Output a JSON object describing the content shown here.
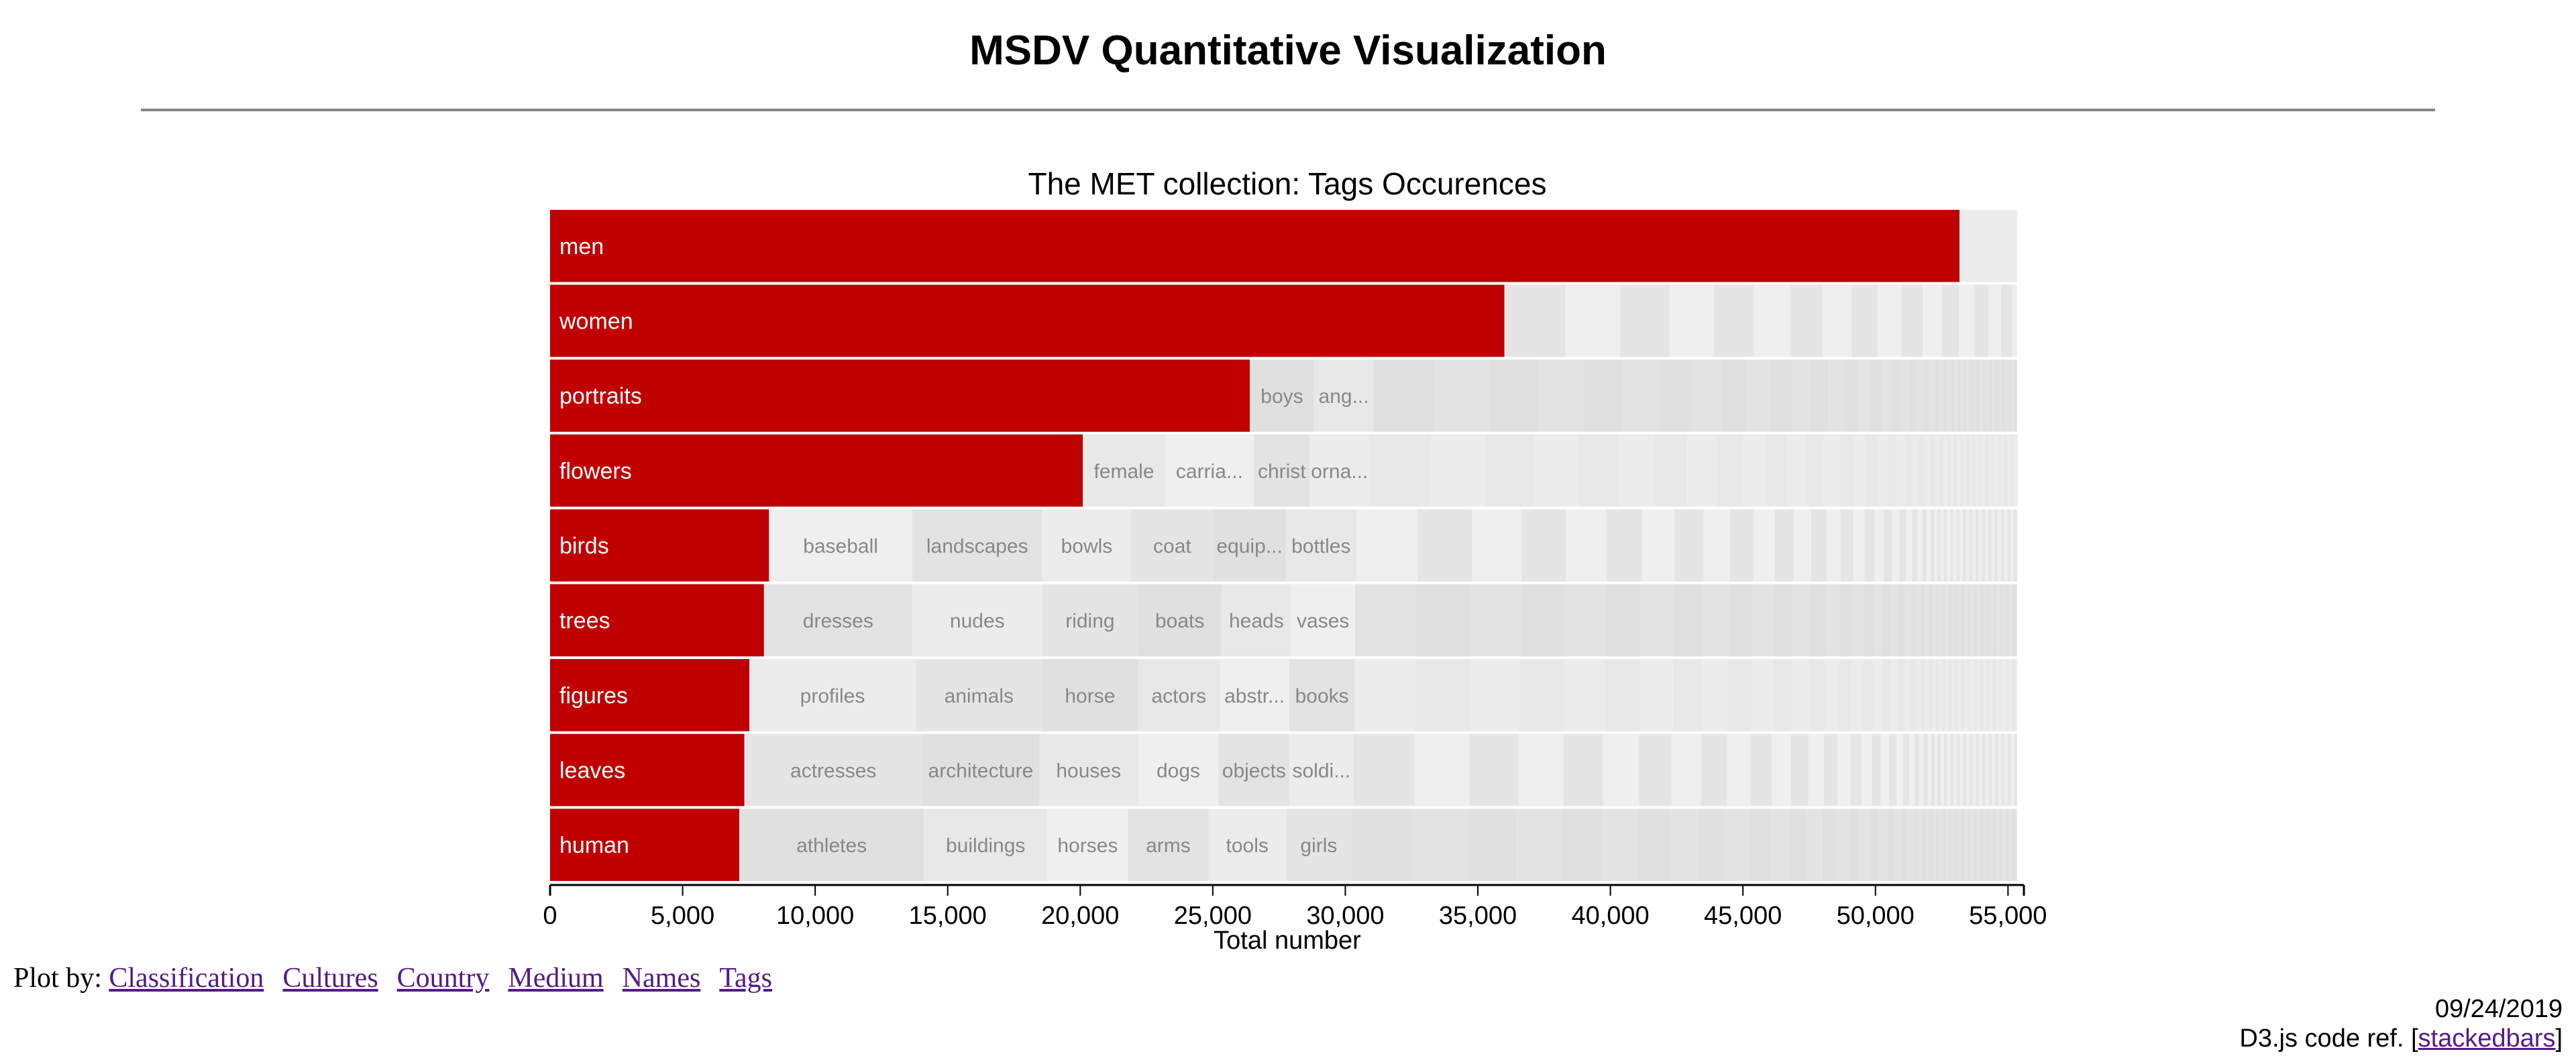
{
  "page": {
    "title": "MSDV Quantitative Visualization"
  },
  "footer": {
    "plot_by_label": "Plot by:",
    "links": [
      "Classification",
      "Cultures",
      "Country",
      "Medium",
      "Names",
      "Tags"
    ],
    "date": "09/24/2019",
    "code_ref_prefix": "D3.js code ref. [",
    "code_ref_link": "stackedbars",
    "code_ref_suffix": "]"
  },
  "chart_data": {
    "type": "bar",
    "orientation": "horizontal-stacked",
    "title": "The MET collection: Tags Occurences",
    "xlabel": "Total number",
    "ylabel": "",
    "xlim": [
      0,
      55600
    ],
    "xticks": [
      "0",
      "5,000",
      "10,000",
      "15,000",
      "20,000",
      "25,000",
      "30,000",
      "35,000",
      "40,000",
      "45,000",
      "50,000",
      "55,000"
    ],
    "xtick_values": [
      0,
      5000,
      10000,
      15000,
      20000,
      25000,
      30000,
      35000,
      40000,
      45000,
      50000,
      55000
    ],
    "grid": false,
    "row_total": 55340,
    "colors": {
      "highlight": "#c00000",
      "others": [
        "#ececec",
        "#e5e5e5",
        "#e0e0e0",
        "#e8e8e8",
        "#efefef",
        "#e3e3e3"
      ],
      "highlight_text": "#ffffff",
      "other_text": "#888888"
    },
    "categories": [
      "men",
      "women",
      "portraits",
      "flowers",
      "birds",
      "trees",
      "figures",
      "leaves",
      "human"
    ],
    "values": [
      53170,
      36000,
      26400,
      20100,
      8260,
      8070,
      7520,
      7330,
      7140
    ],
    "stacked_segments": [
      [],
      [],
      [
        {
          "label": "boys",
          "value": 2420
        },
        {
          "label": "ang...",
          "value": 2240
        }
      ],
      [
        {
          "label": "female",
          "value": 3100
        },
        {
          "label": "carria...",
          "value": 3350
        },
        {
          "label": "christ",
          "value": 2110
        },
        {
          "label": "orna...",
          "value": 2240
        }
      ],
      [
        {
          "label": "baseball",
          "value": 5400
        },
        {
          "label": "landscapes",
          "value": 4910
        },
        {
          "label": "bowls",
          "value": 3350
        },
        {
          "label": "coat",
          "value": 3100
        },
        {
          "label": "equip...",
          "value": 2730
        },
        {
          "label": "bottles",
          "value": 2670
        }
      ],
      [
        {
          "label": "dresses",
          "value": 5590
        },
        {
          "label": "nudes",
          "value": 4910
        },
        {
          "label": "riding",
          "value": 3600
        },
        {
          "label": "boats",
          "value": 3170
        },
        {
          "label": "heads",
          "value": 2610
        },
        {
          "label": "vases",
          "value": 2420
        }
      ],
      [
        {
          "label": "profiles",
          "value": 6270
        },
        {
          "label": "animals",
          "value": 4780
        },
        {
          "label": "horse",
          "value": 3600
        },
        {
          "label": "actors",
          "value": 3100
        },
        {
          "label": "abstr...",
          "value": 2610
        },
        {
          "label": "books",
          "value": 2480
        }
      ],
      [
        {
          "label": "actresses",
          "value": 6710
        },
        {
          "label": "architecture",
          "value": 4410
        },
        {
          "label": "houses",
          "value": 3730
        },
        {
          "label": "dogs",
          "value": 3040
        },
        {
          "label": "objects",
          "value": 2670
        },
        {
          "label": "soldi...",
          "value": 2420
        }
      ],
      [
        {
          "label": "athletes",
          "value": 6960
        },
        {
          "label": "buildings",
          "value": 4660
        },
        {
          "label": "horses",
          "value": 3040
        },
        {
          "label": "arms",
          "value": 3040
        },
        {
          "label": "tools",
          "value": 2920
        },
        {
          "label": "girls",
          "value": 2480
        }
      ]
    ]
  }
}
